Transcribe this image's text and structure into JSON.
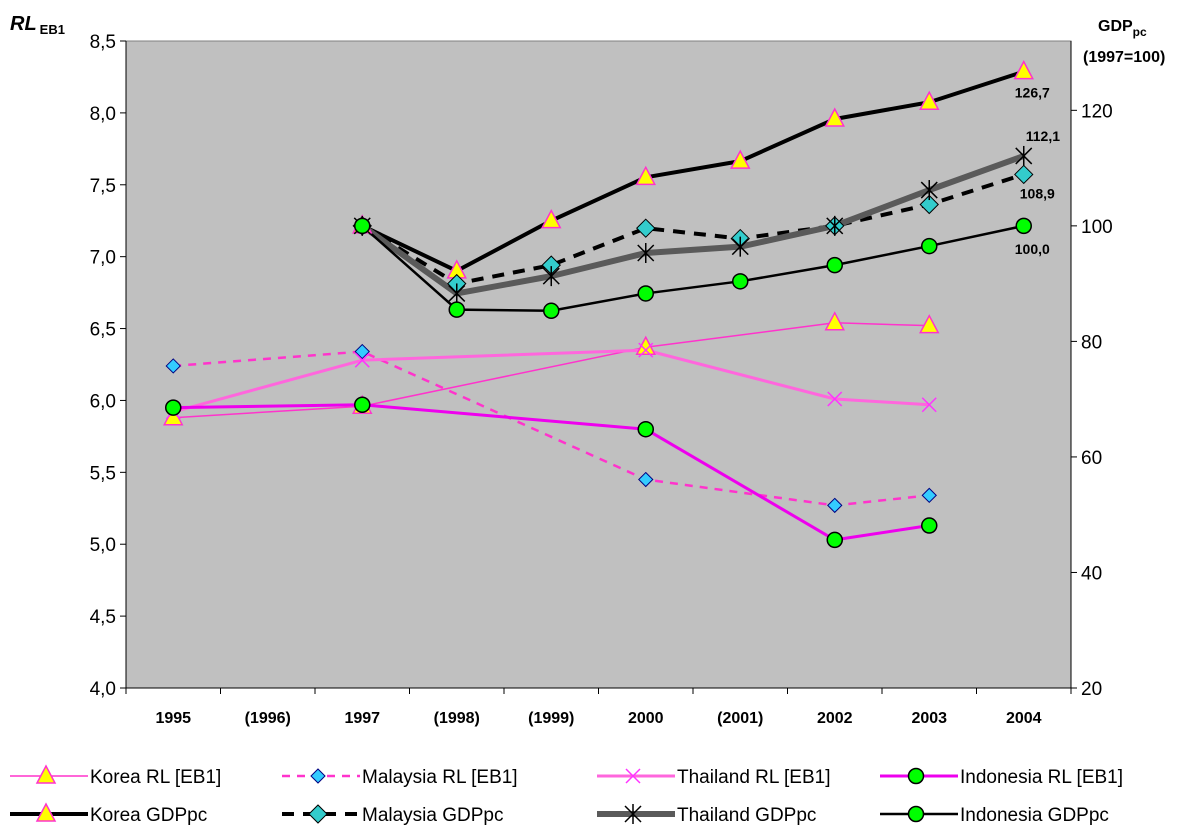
{
  "chart_data": {
    "type": "line",
    "left_axis": {
      "title_main": "RL",
      "title_sub": "EB1",
      "ylim": [
        4.0,
        8.5
      ],
      "ticks": [
        "4,0",
        "4,5",
        "5,0",
        "5,5",
        "6,0",
        "6,5",
        "7,0",
        "7,5",
        "8,0",
        "8,5"
      ]
    },
    "right_axis": {
      "title_main": "GDP",
      "title_sub": "pc",
      "title_line2": "(1997=100)",
      "ylim": [
        20,
        132
      ],
      "ticks": [
        "20",
        "40",
        "60",
        "80",
        "100",
        "120"
      ]
    },
    "categories": [
      "1995",
      "(1996)",
      "1997",
      "(1998)",
      "(1999)",
      "2000",
      "(2001)",
      "2002",
      "2003",
      "2004"
    ],
    "background": "#c0c0c0",
    "grid": false,
    "legend_position": "bottom",
    "series": [
      {
        "name": "Korea RL [EB1]",
        "axis": "left",
        "color": "#ff33cc",
        "width": 1.5,
        "dash": "",
        "marker": "triangle",
        "values": [
          5.88,
          null,
          5.96,
          null,
          null,
          6.37,
          null,
          6.54,
          6.52,
          null
        ]
      },
      {
        "name": "Malaysia RL [EB1]",
        "axis": "left",
        "color": "#ff33cc",
        "width": 2.5,
        "dash": "8,7",
        "marker": "diamond",
        "values": [
          6.24,
          null,
          6.34,
          null,
          null,
          5.45,
          null,
          5.27,
          5.34,
          null
        ]
      },
      {
        "name": "Thailand RL [EB1]",
        "axis": "left",
        "color": "#ff66dd",
        "width": 3,
        "dash": "",
        "marker": "x",
        "values": [
          5.92,
          null,
          6.28,
          null,
          null,
          6.35,
          null,
          6.01,
          5.97,
          null
        ]
      },
      {
        "name": "Indonesia RL [EB1]",
        "axis": "left",
        "color": "#ee00ee",
        "width": 3,
        "dash": "",
        "marker": "circle",
        "values": [
          5.95,
          null,
          5.97,
          null,
          null,
          5.8,
          null,
          5.03,
          5.13,
          null
        ]
      },
      {
        "name": "Korea GDPpc",
        "axis": "right",
        "color": "#000000",
        "width": 4,
        "dash": "",
        "marker": "triangle",
        "values": [
          null,
          null,
          100,
          92.2,
          100.9,
          108.4,
          111.2,
          118.5,
          121.4,
          126.7
        ]
      },
      {
        "name": "Malaysia GDPpc",
        "axis": "right",
        "color": "#000000",
        "width": 4,
        "dash": "12,9",
        "marker": "diamond_cyan",
        "values": [
          null,
          null,
          100,
          90.0,
          93.2,
          99.6,
          97.8,
          100.0,
          103.7,
          108.9
        ]
      },
      {
        "name": "Thailand GDPpc",
        "axis": "right",
        "color": "#5a5a5a",
        "width": 6,
        "dash": "",
        "marker": "star",
        "values": [
          null,
          null,
          100,
          88.3,
          91.3,
          95.3,
          96.4,
          100.0,
          106.2,
          112.1
        ]
      },
      {
        "name": "Indonesia GDPpc",
        "axis": "right",
        "color": "#000000",
        "width": 2.5,
        "dash": "",
        "marker": "circle",
        "values": [
          null,
          null,
          100,
          85.5,
          85.3,
          88.3,
          90.4,
          93.2,
          96.5,
          100.0
        ]
      }
    ],
    "annotations": [
      {
        "text": "126,7",
        "series": "Korea GDPpc",
        "category": "2004"
      },
      {
        "text": "112,1",
        "series": "Thailand GDPpc",
        "category": "2004"
      },
      {
        "text": "108,9",
        "series": "Malaysia GDPpc",
        "category": "2004"
      },
      {
        "text": "100,0",
        "series": "Indonesia GDPpc",
        "category": "2004"
      }
    ]
  }
}
